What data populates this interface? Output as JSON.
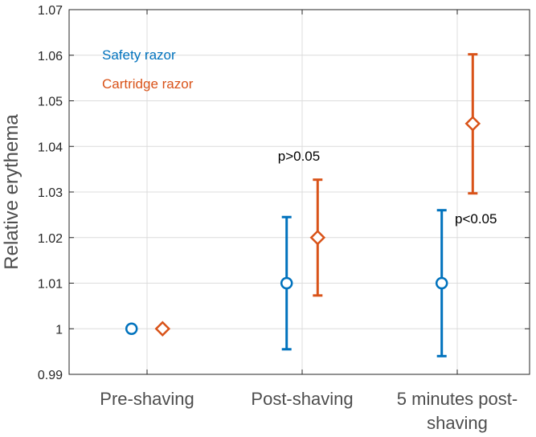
{
  "colors": {
    "safety": "#0072BD",
    "cartridge": "#D95319",
    "grid": "#dcdcdc",
    "axis": "#262626"
  },
  "chart_data": {
    "type": "scatter",
    "title": "",
    "xlabel": "",
    "ylabel": "Relative erythema",
    "categories": [
      [
        "Pre-shaving"
      ],
      [
        "Post-shaving"
      ],
      [
        "5 minutes post-",
        "shaving"
      ]
    ],
    "ylim": [
      0.99,
      1.07
    ],
    "yticks": [
      "0.99",
      "1",
      "1.01",
      "1.02",
      "1.03",
      "1.04",
      "1.05",
      "1.06",
      "1.07"
    ],
    "grid": true,
    "legend_position": "top-left",
    "series": [
      {
        "name": "Safety razor",
        "marker": "circle",
        "color_key": "safety",
        "offset": -0.1,
        "values": [
          1.0,
          1.01,
          1.01
        ],
        "lower": [
          1.0,
          0.9955,
          0.994
        ],
        "upper": [
          1.0,
          1.0245,
          1.026
        ]
      },
      {
        "name": "Cartridge razor",
        "marker": "diamond",
        "color_key": "cartridge",
        "offset": 0.1,
        "values": [
          1.0,
          1.02,
          1.045
        ],
        "lower": [
          1.0,
          1.0073,
          1.0297
        ],
        "upper": [
          1.0,
          1.0327,
          1.0602
        ]
      }
    ],
    "annotations": [
      {
        "text": "p>0.05",
        "category_index": 1
      },
      {
        "text": "p<0.05",
        "category_index": 2
      }
    ]
  }
}
